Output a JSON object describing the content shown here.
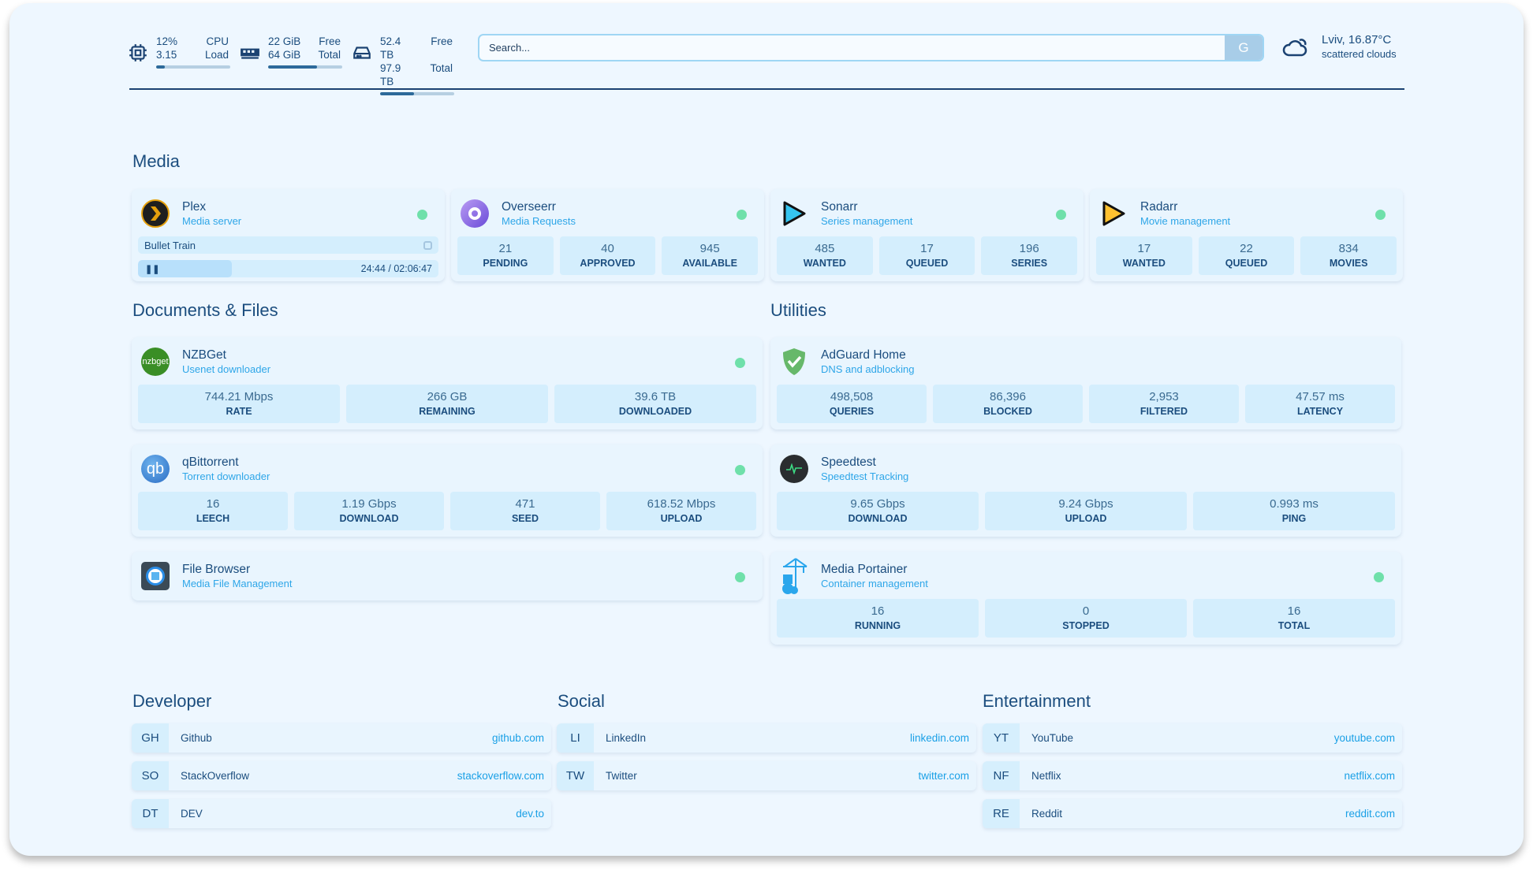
{
  "resources": {
    "cpu": {
      "icon": "cpu-icon",
      "value1": "12%",
      "value2": "3.15",
      "label1": "CPU",
      "label2": "Load",
      "usage_percent": 12
    },
    "memory": {
      "icon": "memory-icon",
      "value1": "22 GiB",
      "value2": "64 GiB",
      "label1": "Free",
      "label2": "Total",
      "usage_percent": 66
    },
    "disk": {
      "icon": "disk-icon",
      "value1": "52.4 TB",
      "value2": "97.9 TB",
      "label1": "Free",
      "label2": "Total",
      "usage_percent": 46
    }
  },
  "search": {
    "placeholder": "Search...",
    "provider_label": "G"
  },
  "weather": {
    "icon": "cloud-sun-icon",
    "location_temp": "Lviv, 16.87°C",
    "condition": "scattered clouds"
  },
  "colors": {
    "accent": "#2ea6e8",
    "text": "#1b4d7e",
    "status_online": "#6fe0aa",
    "stat_bg": "#d4eefd"
  },
  "sections": {
    "media": "Media",
    "docs": "Documents & Files",
    "utilities": "Utilities",
    "developer": "Developer",
    "social": "Social",
    "entertainment": "Entertainment"
  },
  "media": [
    {
      "title": "Plex",
      "subtitle": "Media server",
      "status": "online",
      "now_playing": "Bullet Train",
      "progress": "24:44",
      "duration": "02:06:47",
      "progress_percent": 19.5
    },
    {
      "title": "Overseerr",
      "subtitle": "Media Requests",
      "status": "online",
      "stats": [
        {
          "v": "21",
          "k": "PENDING"
        },
        {
          "v": "40",
          "k": "APPROVED"
        },
        {
          "v": "945",
          "k": "AVAILABLE"
        }
      ]
    },
    {
      "title": "Sonarr",
      "subtitle": "Series management",
      "status": "online",
      "stats": [
        {
          "v": "485",
          "k": "WANTED"
        },
        {
          "v": "17",
          "k": "QUEUED"
        },
        {
          "v": "196",
          "k": "SERIES"
        }
      ]
    },
    {
      "title": "Radarr",
      "subtitle": "Movie management",
      "status": "online",
      "stats": [
        {
          "v": "17",
          "k": "WANTED"
        },
        {
          "v": "22",
          "k": "QUEUED"
        },
        {
          "v": "834",
          "k": "MOVIES"
        }
      ]
    }
  ],
  "docs": [
    {
      "title": "NZBGet",
      "subtitle": "Usenet downloader",
      "logo_text": "nzbget",
      "status": "online",
      "stats": [
        {
          "v": "744.21 Mbps",
          "k": "RATE"
        },
        {
          "v": "266 GB",
          "k": "REMAINING"
        },
        {
          "v": "39.6 TB",
          "k": "DOWNLOADED"
        }
      ]
    },
    {
      "title": "qBittorrent",
      "subtitle": "Torrent downloader",
      "logo_text": "qb",
      "status": "online",
      "stats": [
        {
          "v": "16",
          "k": "LEECH"
        },
        {
          "v": "1.19 Gbps",
          "k": "DOWNLOAD"
        },
        {
          "v": "471",
          "k": "SEED"
        },
        {
          "v": "618.52 Mbps",
          "k": "UPLOAD"
        }
      ]
    },
    {
      "title": "File Browser",
      "subtitle": "Media File Management",
      "status": "online"
    }
  ],
  "utilities": [
    {
      "title": "AdGuard Home",
      "subtitle": "DNS and adblocking",
      "stats": [
        {
          "v": "498,508",
          "k": "QUERIES"
        },
        {
          "v": "86,396",
          "k": "BLOCKED"
        },
        {
          "v": "2,953",
          "k": "FILTERED"
        },
        {
          "v": "47.57 ms",
          "k": "LATENCY"
        }
      ]
    },
    {
      "title": "Speedtest",
      "subtitle": "Speedtest Tracking",
      "stats": [
        {
          "v": "9.65 Gbps",
          "k": "DOWNLOAD"
        },
        {
          "v": "9.24 Gbps",
          "k": "UPLOAD"
        },
        {
          "v": "0.993 ms",
          "k": "PING"
        }
      ]
    },
    {
      "title": "Media Portainer",
      "subtitle": "Container management",
      "status": "online",
      "stats": [
        {
          "v": "16",
          "k": "RUNNING"
        },
        {
          "v": "0",
          "k": "STOPPED"
        },
        {
          "v": "16",
          "k": "TOTAL"
        }
      ]
    }
  ],
  "bookmarks": {
    "developer": [
      {
        "abbr": "GH",
        "name": "Github",
        "url": "github.com"
      },
      {
        "abbr": "SO",
        "name": "StackOverflow",
        "url": "stackoverflow.com"
      },
      {
        "abbr": "DT",
        "name": "DEV",
        "url": "dev.to"
      }
    ],
    "social": [
      {
        "abbr": "LI",
        "name": "LinkedIn",
        "url": "linkedin.com"
      },
      {
        "abbr": "TW",
        "name": "Twitter",
        "url": "twitter.com"
      }
    ],
    "entertainment": [
      {
        "abbr": "YT",
        "name": "YouTube",
        "url": "youtube.com"
      },
      {
        "abbr": "NF",
        "name": "Netflix",
        "url": "netflix.com"
      },
      {
        "abbr": "RE",
        "name": "Reddit",
        "url": "reddit.com"
      }
    ]
  }
}
